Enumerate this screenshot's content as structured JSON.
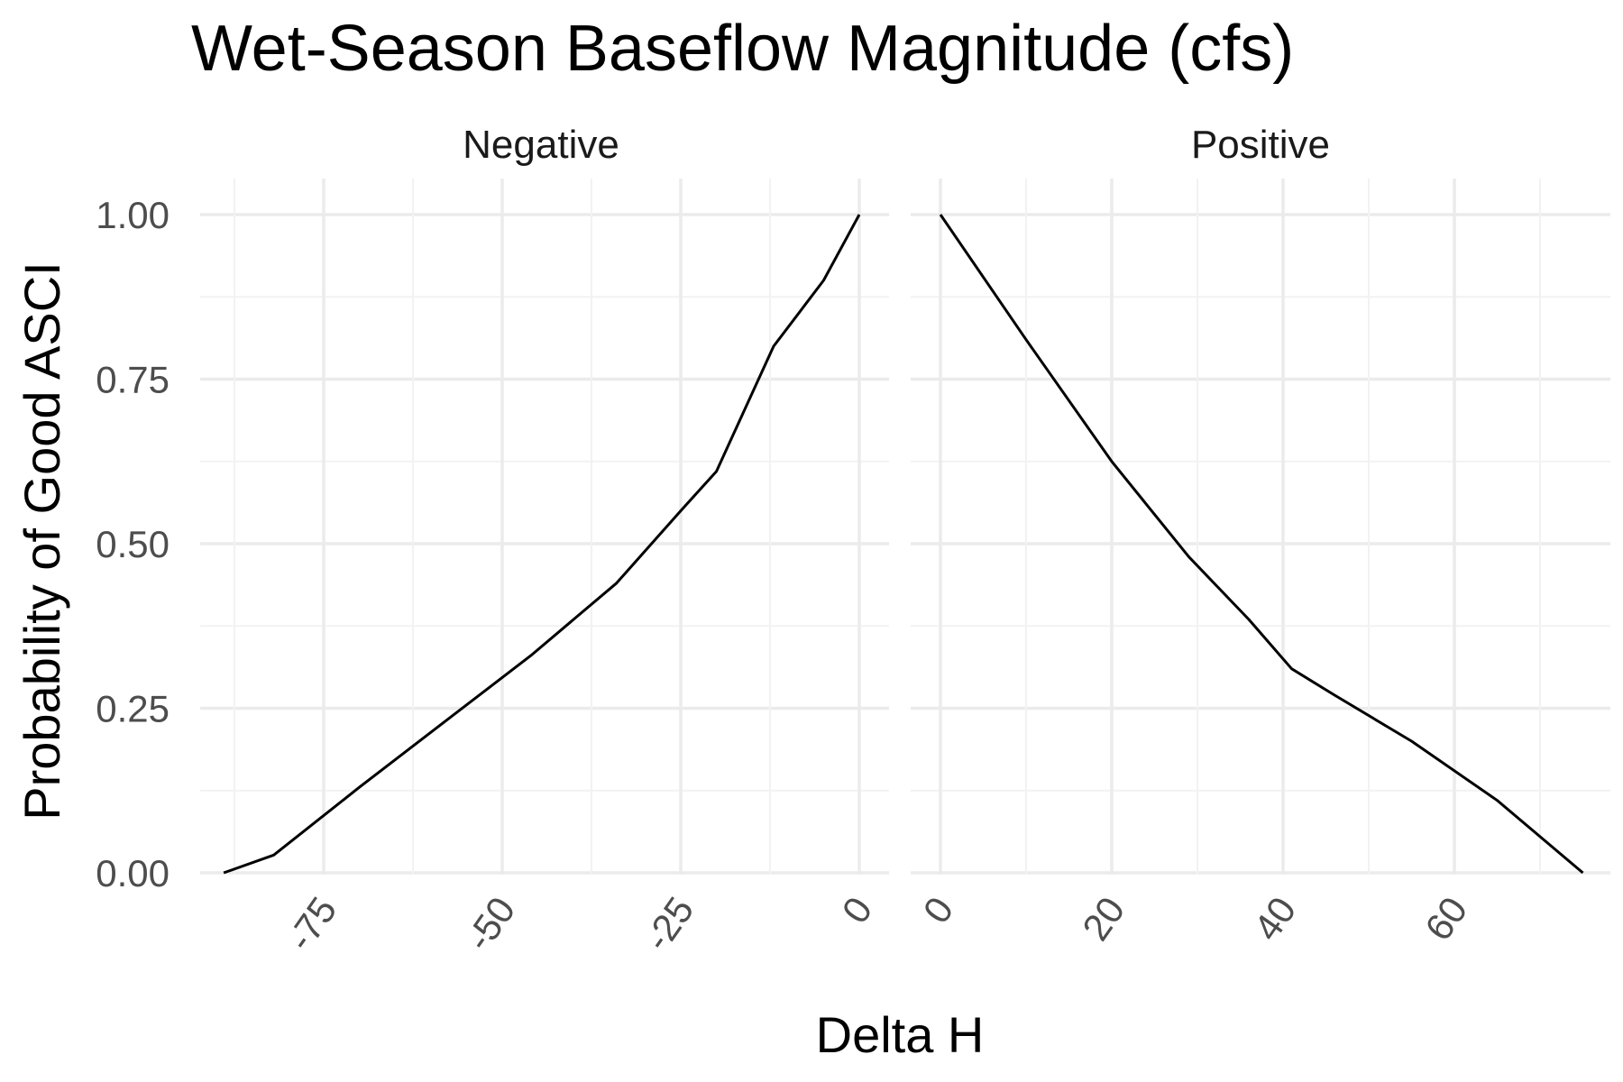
{
  "chart_data": {
    "type": "line",
    "title": "Wet-Season Baseflow Magnitude (cfs)",
    "xlabel": "Delta H",
    "ylabel": "Probability of Good ASCI",
    "y_ticks": [
      "0.00",
      "0.25",
      "0.50",
      "0.75",
      "1.00"
    ],
    "ylim": [
      0,
      1
    ],
    "grid": true,
    "facets": [
      {
        "label": "Negative",
        "xlim": [
          -90,
          0
        ],
        "x_ticks": [
          {
            "value": -75,
            "label": "-75"
          },
          {
            "value": -50,
            "label": "-50"
          },
          {
            "value": -25,
            "label": "-25"
          },
          {
            "value": 0,
            "label": "0"
          }
        ],
        "x": [
          -89,
          -82,
          -70,
          -58,
          -46,
          -34,
          -25,
          -20,
          -12,
          -5,
          0
        ],
        "y": [
          0.0,
          0.027,
          0.13,
          0.23,
          0.33,
          0.44,
          0.55,
          0.61,
          0.8,
          0.9,
          1.0
        ]
      },
      {
        "label": "Positive",
        "xlim": [
          0,
          75
        ],
        "x_ticks": [
          {
            "value": 0,
            "label": "0"
          },
          {
            "value": 20,
            "label": "20"
          },
          {
            "value": 40,
            "label": "40"
          },
          {
            "value": 60,
            "label": "60"
          }
        ],
        "x": [
          0,
          10,
          20,
          29,
          36,
          41,
          46,
          55,
          65,
          75
        ],
        "y": [
          1.0,
          0.81,
          0.625,
          0.48,
          0.385,
          0.31,
          0.27,
          0.2,
          0.11,
          0.0
        ]
      }
    ]
  }
}
